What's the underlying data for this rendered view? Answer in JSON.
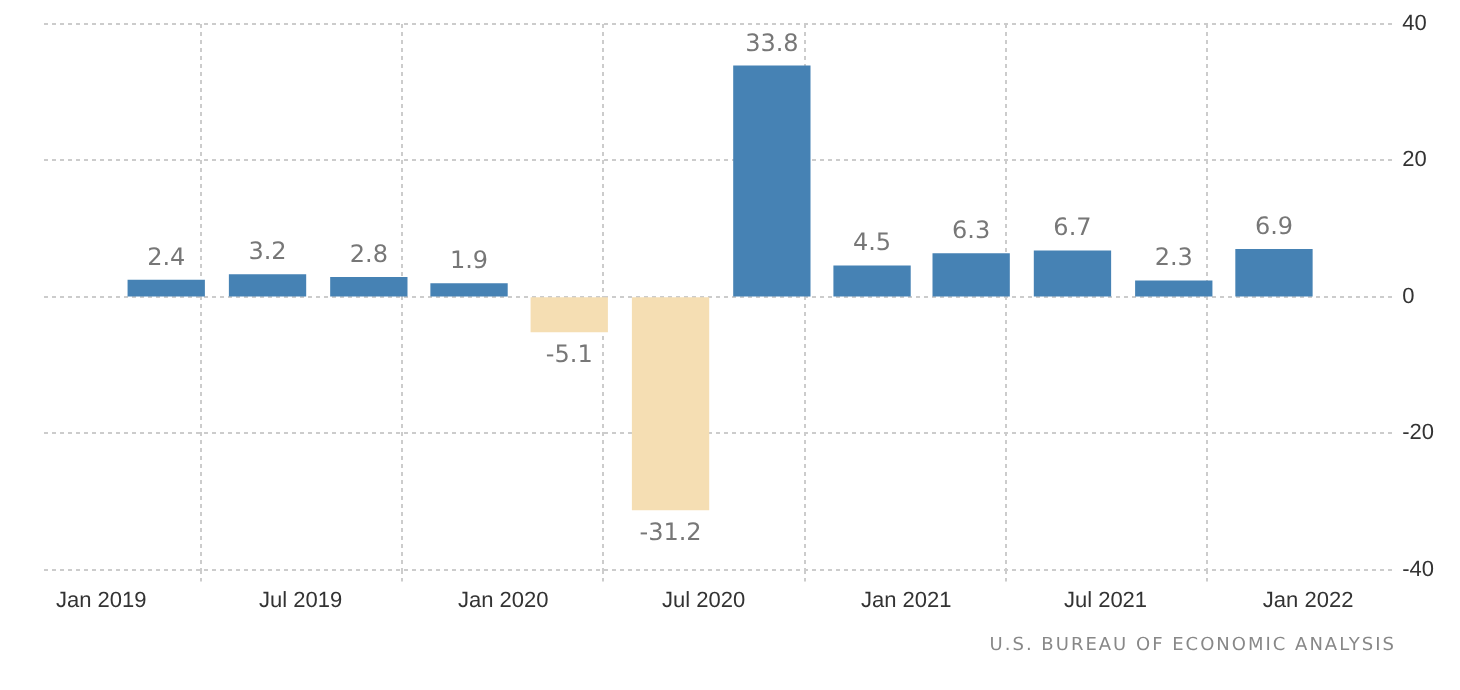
{
  "chart_data": {
    "type": "bar",
    "x": [
      "2019-03-01",
      "2019-06-01",
      "2019-09-01",
      "2019-12-01",
      "2020-03-01",
      "2020-06-01",
      "2020-09-01",
      "2020-12-01",
      "2021-03-01",
      "2021-06-01",
      "2021-09-01",
      "2021-12-01"
    ],
    "values": [
      2.4,
      3.2,
      2.8,
      1.9,
      -5.1,
      -31.2,
      33.8,
      4.5,
      6.3,
      6.7,
      2.3,
      6.9
    ],
    "colors": [
      "#4682b4",
      "#4682b4",
      "#4682b4",
      "#4682b4",
      "#f5deb3",
      "#f5deb3",
      "#4682b4",
      "#4682b4",
      "#4682b4",
      "#4682b4",
      "#4682b4",
      "#4682b4"
    ],
    "data_labels": true,
    "xlim": [
      "2018-11-10",
      "2022-03-22"
    ],
    "xticks": [
      {
        "value": "2019-01-01",
        "label": "Jan 2019"
      },
      {
        "value": "2019-07-01",
        "label": "Jul 2019"
      },
      {
        "value": "2020-01-01",
        "label": "Jan 2020"
      },
      {
        "value": "2020-07-01",
        "label": "Jul 2020"
      },
      {
        "value": "2021-01-01",
        "label": "Jan 2021"
      },
      {
        "value": "2021-07-01",
        "label": "Jul 2021"
      },
      {
        "value": "2022-01-01",
        "label": "Jan 2022"
      }
    ],
    "ylim": [
      -40,
      40
    ],
    "yticks": [
      -40,
      -20,
      0,
      20,
      40
    ],
    "grid": true,
    "annotations": [
      "U.S. BUREAU OF ECONOMIC ANALYSIS"
    ]
  }
}
